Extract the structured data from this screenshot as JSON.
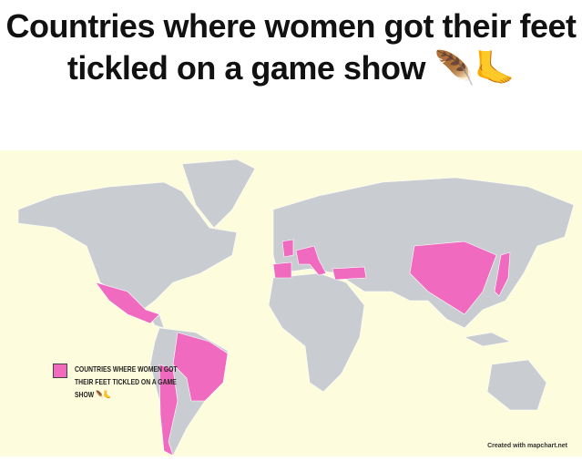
{
  "title": "Countries where women got their feet tickled on a game show 🪶🦶",
  "legend": {
    "label": "COUNTRIES WHERE WOMEN GOT THEIR FEET TICKLED ON A GAME SHOW 🪶🦶",
    "color": "#f06bbf"
  },
  "highlighted_countries_color": "#f06bbf",
  "land_color": "#c9cdd1",
  "ocean_color": "#fdfcdc",
  "credit": "Created with mapchart.net"
}
